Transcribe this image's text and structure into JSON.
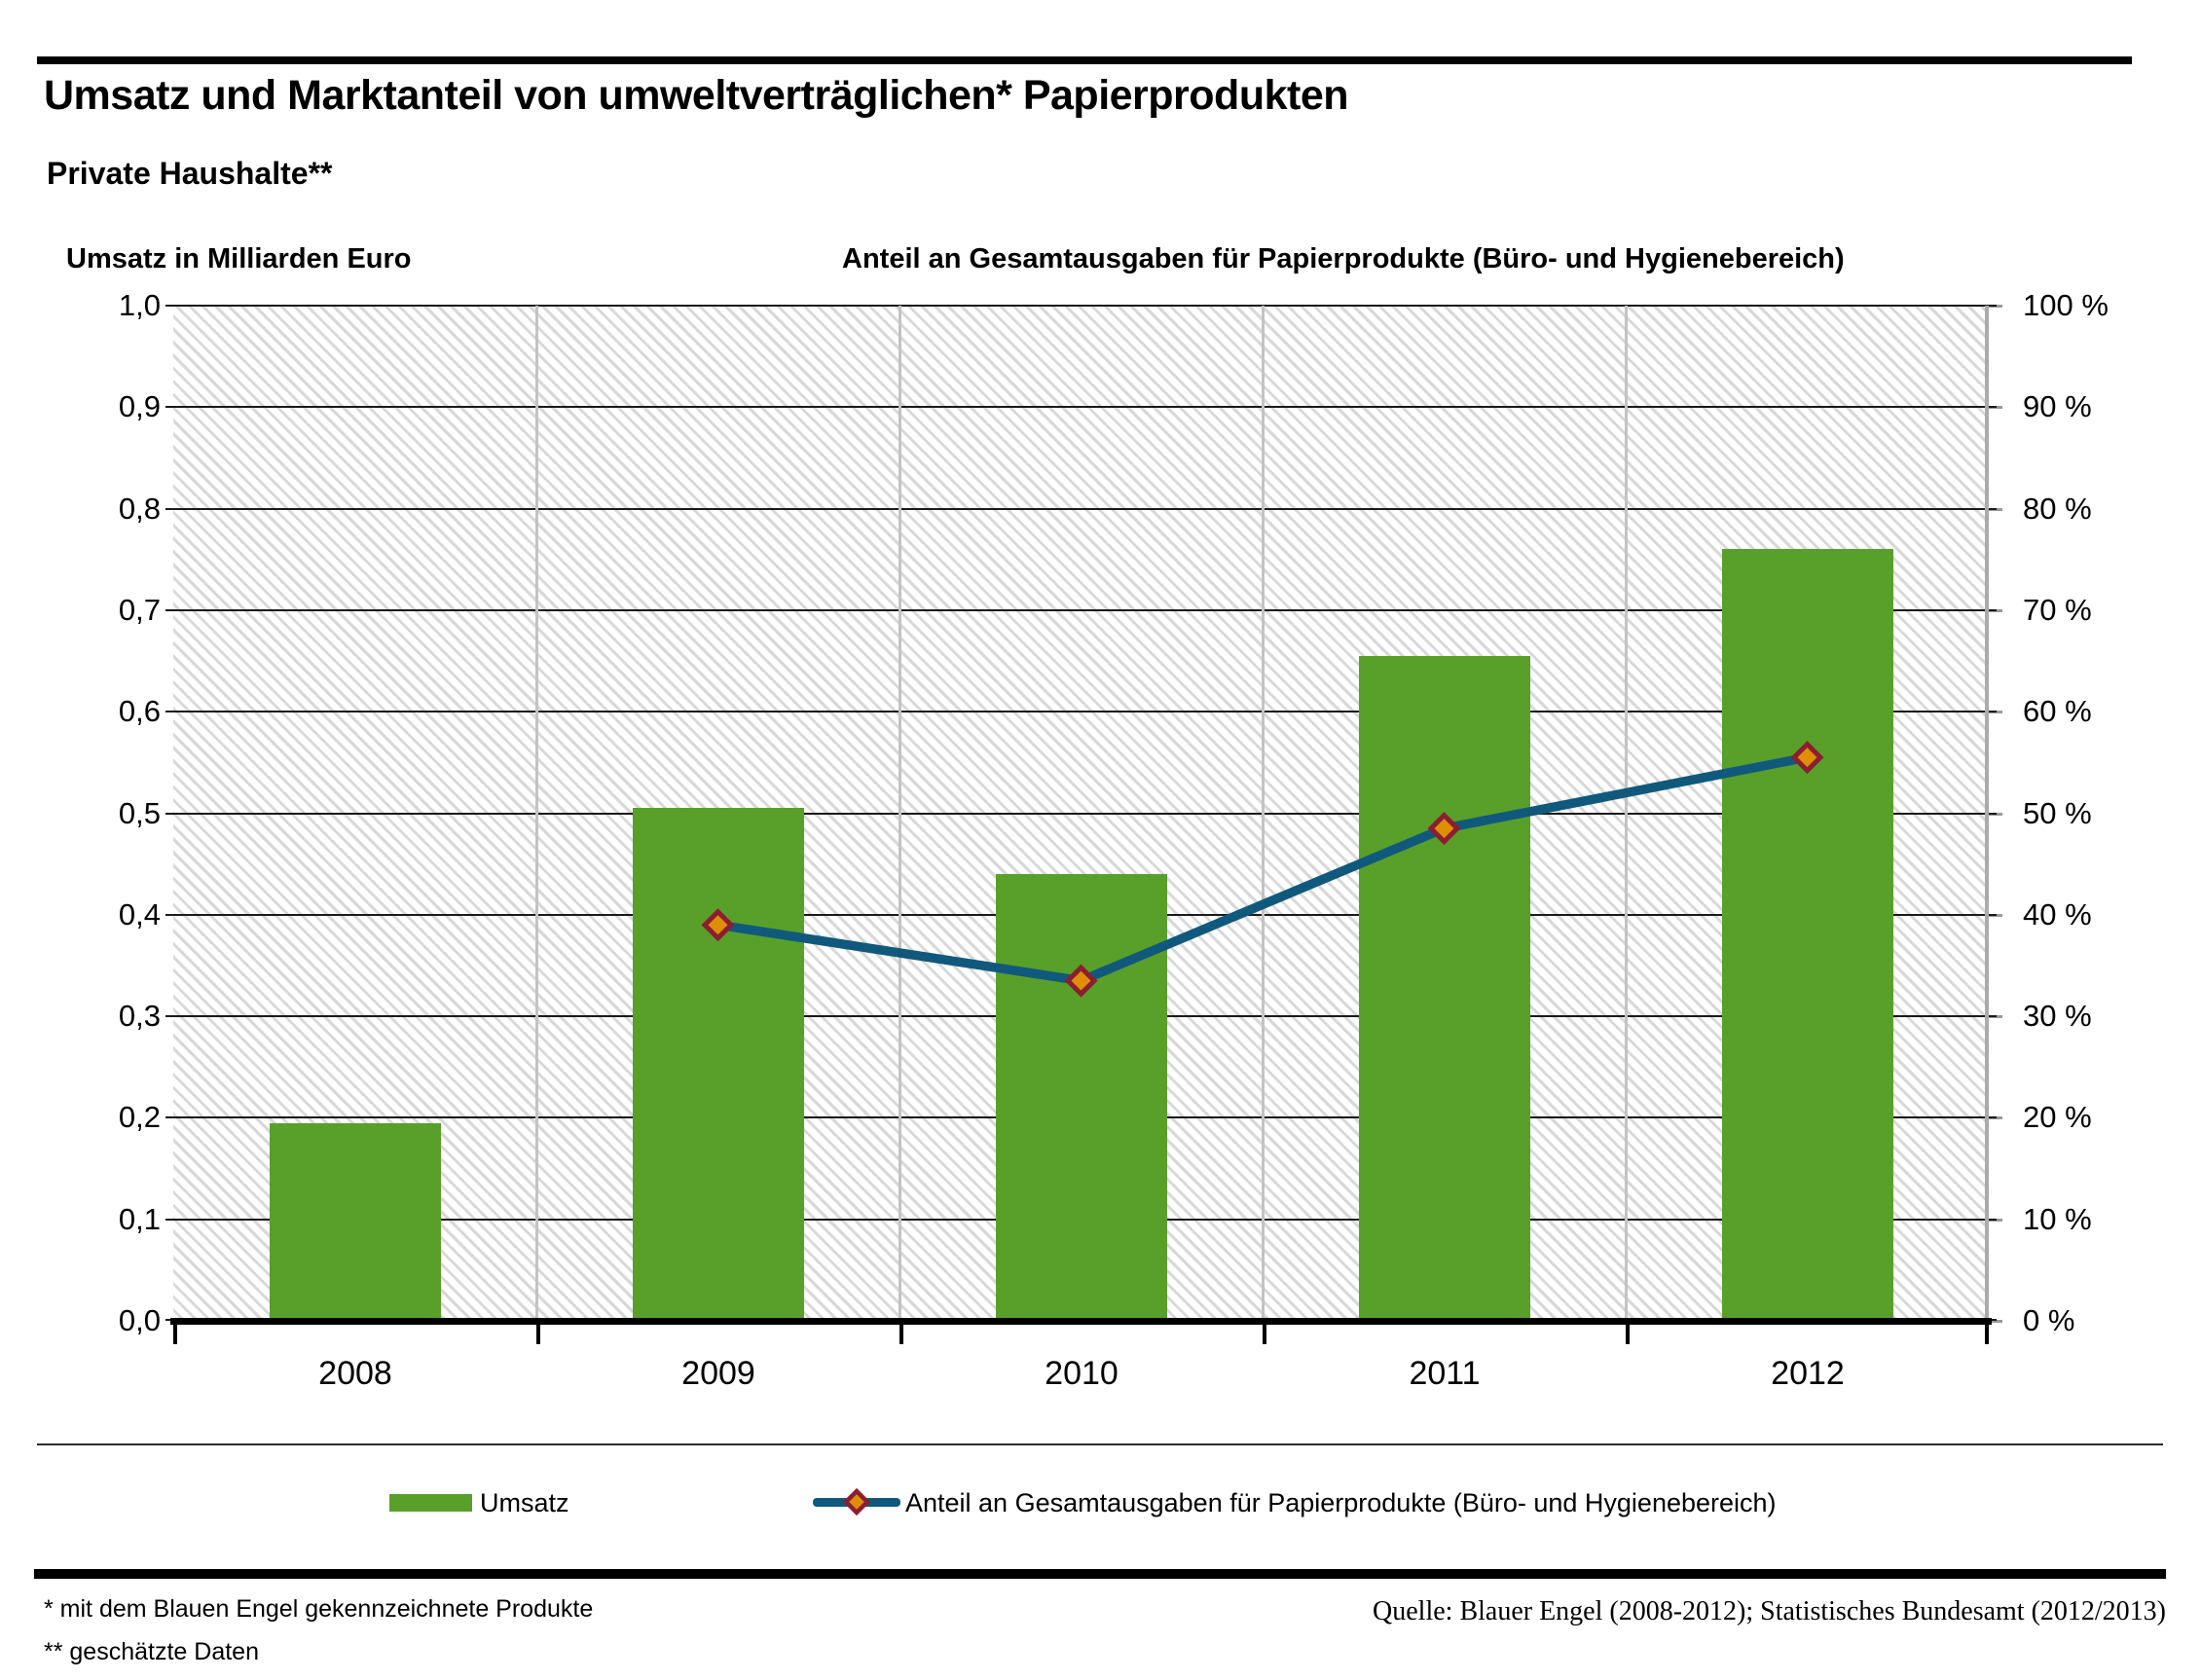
{
  "header": {
    "title": "Umsatz und Marktanteil von umweltverträglichen* Papierprodukten",
    "subtitle": "Private Haushalte**"
  },
  "axes": {
    "left_title": "Umsatz in Milliarden Euro",
    "right_title": "Anteil an Gesamtausgaben für Papierprodukte (Büro- und Hygienebereich)",
    "left_ticks": [
      "1,0",
      "0,9",
      "0,8",
      "0,7",
      "0,6",
      "0,5",
      "0,4",
      "0,3",
      "0,2",
      "0,1",
      "0,0"
    ],
    "right_ticks": [
      "100 %",
      "90 %",
      "80 %",
      "70 %",
      "60 %",
      "50 %",
      "40 %",
      "30 %",
      "20 %",
      "10 %",
      "0 %"
    ]
  },
  "chart_data": {
    "type": "bar+line",
    "categories": [
      "2008",
      "2009",
      "2010",
      "2011",
      "2012"
    ],
    "series": [
      {
        "name": "Umsatz",
        "type": "bar",
        "axis": "left",
        "unit": "Milliarden Euro",
        "color": "#58a02a",
        "values": [
          0.195,
          0.505,
          0.44,
          0.655,
          0.76
        ]
      },
      {
        "name": "Anteil an Gesamtausgaben für Papierprodukte (Büro- und Hygienebereich)",
        "type": "line",
        "axis": "right",
        "unit": "%",
        "color": "#11597c",
        "marker": "diamond",
        "marker_fill": "#df8f07",
        "marker_stroke": "#8c1e31",
        "values": [
          null,
          39,
          33.5,
          48.5,
          55.5
        ]
      }
    ],
    "left_axis": {
      "min": 0,
      "max": 1.0,
      "step": 0.1
    },
    "right_axis": {
      "min": 0,
      "max": 100,
      "step": 10
    },
    "grid": true,
    "legend_position": "bottom",
    "plot_background": "diagonal-hatch"
  },
  "footer": {
    "footnote1": "* mit dem Blauen Engel gekennzeichnete Produkte",
    "footnote2": "** geschätzte Daten",
    "source": "Quelle: Blauer Engel (2008-2012); Statistisches Bundesamt (2012/2013)"
  },
  "colors": {
    "bar_green": "#58a02a",
    "line_blue": "#11597c",
    "marker_orange": "#df8f07",
    "marker_border": "#8c1e31",
    "gridline_black": "#1a1a1a",
    "vline_gray": "#c3c3c3"
  }
}
